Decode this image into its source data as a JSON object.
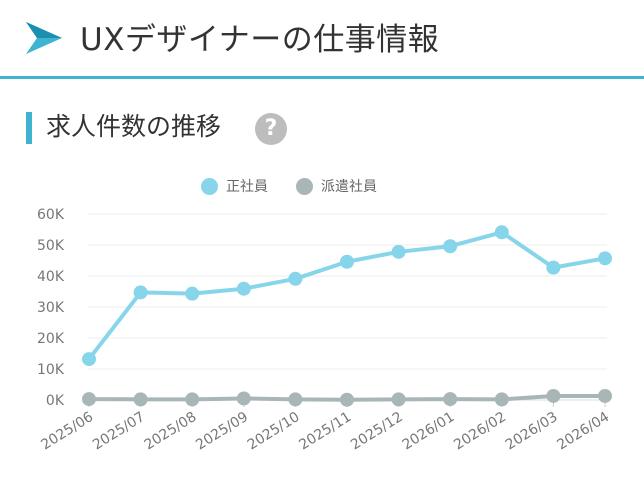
{
  "header": {
    "title": "UXデザイナーの仕事情報",
    "icon": "arrow-play-icon"
  },
  "section": {
    "title": "求人件数の推移",
    "help_label": "?"
  },
  "colors": {
    "accent": "#3fb3cf",
    "series_regular": "#86d5ea",
    "series_dispatch": "#a9b6b8"
  },
  "chart_data": {
    "type": "line",
    "title": "",
    "xlabel": "",
    "ylabel": "",
    "categories": [
      "2025/06",
      "2025/07",
      "2025/08",
      "2025/09",
      "2025/10",
      "2025/11",
      "2025/12",
      "2026/01",
      "2026/02",
      "2026/03",
      "2026/04"
    ],
    "yticks": [
      "0K",
      "10K",
      "20K",
      "30K",
      "40K",
      "50K",
      "60K"
    ],
    "ylim": [
      0,
      60000
    ],
    "grid": true,
    "legend_position": "top",
    "series": [
      {
        "name": "正社員",
        "values": [
          13200,
          34700,
          34300,
          35900,
          39100,
          44600,
          47800,
          49600,
          54100,
          42700,
          45700
        ]
      },
      {
        "name": "派遣社員",
        "values": [
          300,
          200,
          200,
          500,
          200,
          100,
          200,
          300,
          200,
          1300,
          1300
        ]
      }
    ]
  }
}
